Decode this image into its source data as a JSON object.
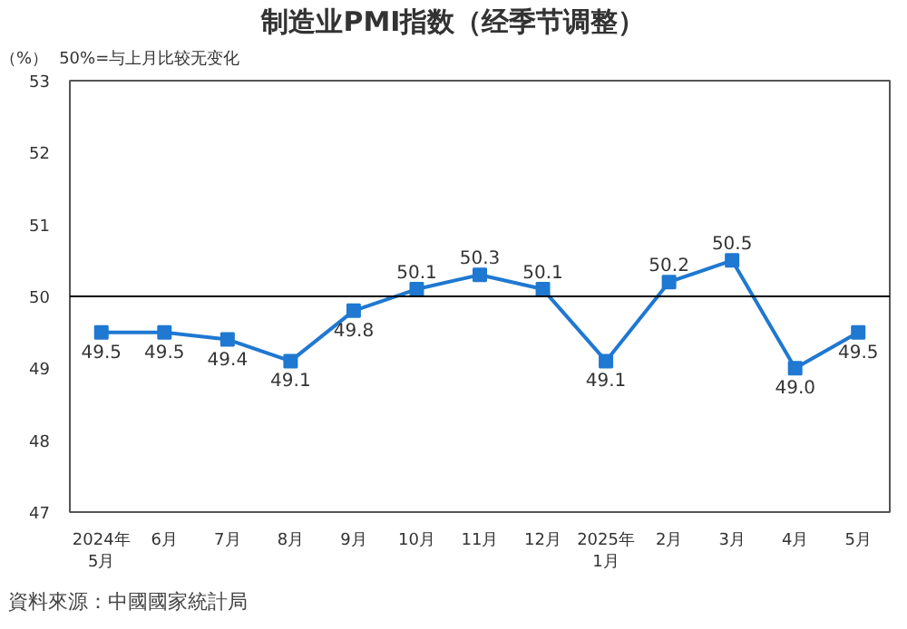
{
  "chart_data": {
    "type": "line",
    "title": "制造业PMI指数（经季节调整）",
    "ylabel": "（%）",
    "annotations": [
      "50%=与上月比较无变化",
      "資料來源：中國國家統計局"
    ],
    "categories": [
      "2024年\n5月",
      "6月",
      "7月",
      "8月",
      "9月",
      "10月",
      "11月",
      "12月",
      "2025年\n1月",
      "2月",
      "3月",
      "4月",
      "5月"
    ],
    "series": [
      {
        "color": "#1f78d1",
        "values": [
          49.5,
          49.5,
          49.4,
          49.1,
          49.8,
          50.1,
          50.3,
          50.1,
          49.1,
          50.2,
          50.5,
          49.0,
          49.5
        ],
        "value_labels": [
          "49.5",
          "49.5",
          "49.4",
          "49.1",
          "49.8",
          "50.1",
          "50.3",
          "50.1",
          "49.1",
          "50.2",
          "50.5",
          "49.0",
          "49.5"
        ]
      }
    ],
    "ylim": [
      47,
      53
    ],
    "yticks": [
      47,
      48,
      49,
      50,
      51,
      52,
      53
    ],
    "ref_lines": [
      {
        "axis": "y",
        "value": 50,
        "color": "#000000"
      }
    ],
    "grid": false,
    "marker": "square",
    "line_style": "solid"
  }
}
